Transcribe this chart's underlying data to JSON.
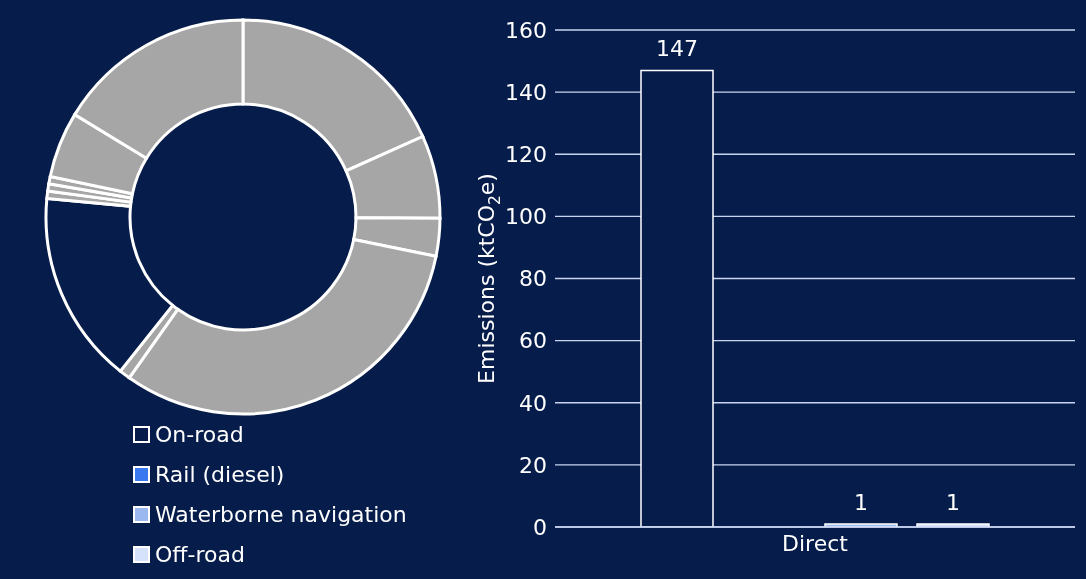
{
  "chart_data": [
    {
      "type": "donut",
      "categories": [
        null,
        null,
        null,
        null,
        null,
        null,
        null,
        null,
        null,
        null,
        null
      ],
      "values": [
        18.3,
        6.8,
        3.1,
        31.6,
        0.9,
        15.8,
        0.6,
        0.6,
        0.6,
        5.4,
        16.3
      ],
      "colors": [
        "#a6a6a6",
        "#a6a6a6",
        "#a6a6a6",
        "#a6a6a6",
        "#a6a6a6",
        "#061c4a",
        "#a6a6a6",
        "#a6a6a6",
        "#a6a6a6",
        "#a6a6a6",
        "#a6a6a6"
      ]
    },
    {
      "type": "bar",
      "categories": [
        "Direct"
      ],
      "ylabel": "Emissions (ktCO$_{2}$e)",
      "ylim": [
        0,
        160
      ],
      "yticks": [
        0,
        20,
        40,
        60,
        80,
        100,
        120,
        140,
        160
      ],
      "grid": "y",
      "legend": "left",
      "series": [
        {
          "name": "On-road",
          "color": "#061c4a",
          "values": [
            147
          ],
          "value_labels": [
            "147"
          ]
        },
        {
          "name": "Rail (diesel)",
          "color": "#3a78f0",
          "values": [
            0
          ],
          "value_labels": [
            null
          ]
        },
        {
          "name": "Waterborne navigation",
          "color": "#9cb8f0",
          "values": [
            1
          ],
          "value_labels": [
            "1"
          ]
        },
        {
          "name": "Off-road",
          "color": "#d6e2fb",
          "values": [
            1
          ],
          "value_labels": [
            "1"
          ]
        }
      ]
    }
  ]
}
